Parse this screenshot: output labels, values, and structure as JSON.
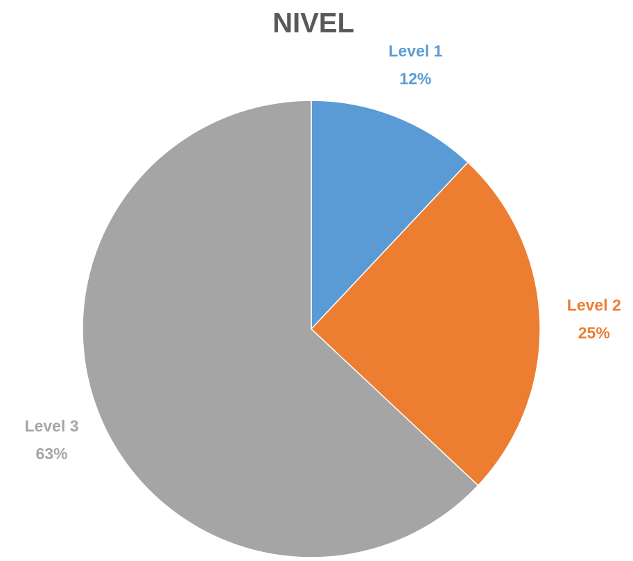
{
  "chart_data": {
    "type": "pie",
    "title": "NIVEL",
    "categories": [
      "Level 1",
      "Level 2",
      "Level 3"
    ],
    "values": [
      12,
      25,
      63
    ],
    "value_labels": [
      "12%",
      "25%",
      "63%"
    ],
    "colors": [
      "#5b9bd5",
      "#ed7d31",
      "#a5a5a5"
    ]
  }
}
